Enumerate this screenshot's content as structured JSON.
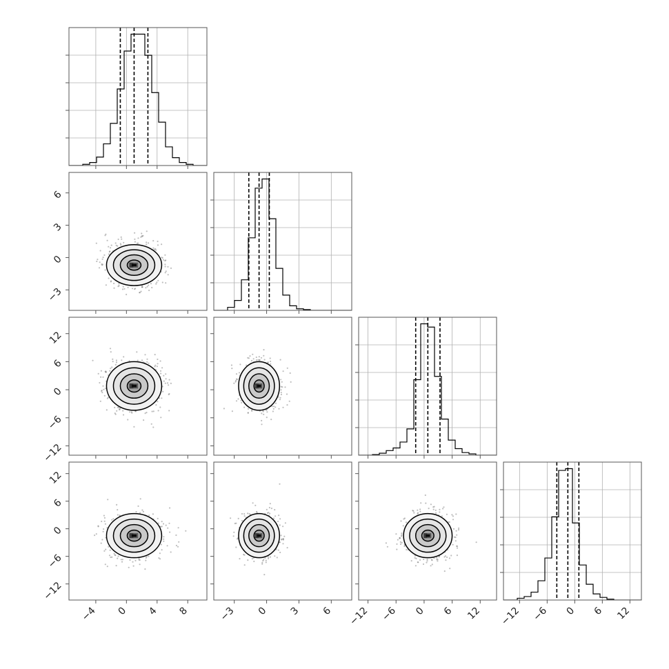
{
  "figure": {
    "type": "corner-plot",
    "colors": {
      "axes": "#555555",
      "grid": "#b0b0b0",
      "ink": "#000000",
      "scatter": "#6e6e6e"
    }
  },
  "parameters": [
    {
      "id": "p0",
      "mean": 1.0,
      "sigma": 1.8,
      "q16": -0.8,
      "q50": 1.0,
      "q84": 2.8,
      "range": [
        -7.5,
        10.5
      ],
      "ticks": [
        -4,
        0,
        4,
        8
      ],
      "tick_labels": [
        "−4",
        "0",
        "4",
        "8"
      ]
    },
    {
      "id": "p1",
      "mean": -0.7,
      "sigma": 0.95,
      "q16": -1.65,
      "q50": -0.7,
      "q84": 0.25,
      "range": [
        -4.9,
        7.9
      ],
      "ticks": [
        -3,
        0,
        3,
        6
      ],
      "tick_labels": [
        "−3",
        "0",
        "3",
        "6"
      ]
    },
    {
      "id": "p2",
      "mean": 0.8,
      "sigma": 2.6,
      "q16": -1.8,
      "q50": 0.8,
      "q84": 3.4,
      "range": [
        -14,
        15.5
      ],
      "ticks": [
        -12,
        -6,
        0,
        6,
        12
      ],
      "tick_labels": [
        "−12",
        "−6",
        "0",
        "6",
        "12"
      ]
    },
    {
      "id": "p3",
      "mean": -1.5,
      "sigma": 2.4,
      "q16": -3.9,
      "q50": -1.5,
      "q84": 0.9,
      "range": [
        -15.5,
        14.5
      ],
      "ticks": [
        -12,
        -6,
        0,
        6,
        12
      ],
      "tick_labels": [
        "−12",
        "−6",
        "0",
        "6",
        "12"
      ]
    }
  ],
  "chart_data": [
    {
      "type": "histogram",
      "panel": "hist-p0",
      "param": 0,
      "bins": [
        -7.5,
        -6.6,
        -5.7,
        -4.8,
        -3.9,
        -3.0,
        -2.1,
        -1.2,
        -0.3,
        0.6,
        1.5,
        2.4,
        3.3,
        4.2,
        5.1,
        6.0,
        6.9,
        7.8,
        8.7,
        9.6,
        10.5
      ],
      "counts": [
        0,
        0,
        2,
        5,
        14,
        36,
        70,
        127,
        190,
        218,
        218,
        183,
        121,
        72,
        31,
        13,
        5,
        2,
        0,
        0
      ],
      "quantiles": [
        -0.8,
        1.0,
        2.8
      ]
    },
    {
      "type": "histogram",
      "panel": "hist-p1",
      "param": 1,
      "bins": [
        -4.9,
        -4.26,
        -3.62,
        -2.98,
        -2.34,
        -1.7,
        -1.06,
        -0.42,
        0.22,
        0.86,
        1.5,
        2.14,
        2.78,
        3.42,
        4.06,
        4.7,
        5.34,
        5.98,
        6.62,
        7.26,
        7.9
      ],
      "counts": [
        0,
        0,
        4,
        13,
        40,
        95,
        160,
        172,
        120,
        55,
        20,
        6,
        2,
        1,
        0,
        0,
        0,
        0,
        0,
        0
      ],
      "quantiles": [
        -1.65,
        -0.7,
        0.25
      ]
    },
    {
      "type": "histogram",
      "panel": "hist-p2",
      "param": 2,
      "bins": [
        -14.0,
        -12.525,
        -11.05,
        -9.575,
        -8.1,
        -6.625,
        -5.15,
        -3.675,
        -2.2,
        -0.725,
        0.75,
        2.225,
        3.7,
        5.175,
        6.65,
        8.125,
        9.6,
        11.075,
        12.55,
        14.025,
        15.5
      ],
      "counts": [
        0,
        0,
        1,
        3,
        7,
        11,
        20,
        40,
        115,
        200,
        195,
        120,
        55,
        23,
        10,
        4,
        2,
        0,
        0,
        0
      ],
      "quantiles": [
        -1.8,
        0.8,
        3.4
      ]
    },
    {
      "type": "histogram",
      "panel": "hist-p3",
      "param": 3,
      "bins": [
        -15.5,
        -14.0,
        -12.5,
        -11.0,
        -9.5,
        -8.0,
        -6.5,
        -5.0,
        -3.5,
        -2.0,
        -0.5,
        1.0,
        2.5,
        4.0,
        5.5,
        7.0,
        8.5,
        10.0,
        11.5,
        13.0,
        14.5
      ],
      "counts": [
        0,
        0,
        2,
        4,
        9,
        22,
        48,
        95,
        148,
        150,
        88,
        40,
        18,
        7,
        3,
        1,
        0,
        0,
        0,
        0
      ],
      "quantiles": [
        -3.9,
        -1.5,
        0.9
      ]
    },
    {
      "type": "scatter-contour",
      "panel": "joint-p1-p0",
      "x_param": 0,
      "y_param": 1,
      "levels": [
        0.5,
        1.0,
        1.5,
        2.0
      ]
    },
    {
      "type": "scatter-contour",
      "panel": "joint-p2-p0",
      "x_param": 0,
      "y_param": 2,
      "levels": [
        0.5,
        1.0,
        1.5,
        2.0
      ]
    },
    {
      "type": "scatter-contour",
      "panel": "joint-p2-p1",
      "x_param": 1,
      "y_param": 2,
      "levels": [
        0.5,
        1.0,
        1.5,
        2.0
      ]
    },
    {
      "type": "scatter-contour",
      "panel": "joint-p3-p0",
      "x_param": 0,
      "y_param": 3,
      "levels": [
        0.5,
        1.0,
        1.5,
        2.0
      ]
    },
    {
      "type": "scatter-contour",
      "panel": "joint-p3-p1",
      "x_param": 1,
      "y_param": 3,
      "levels": [
        0.5,
        1.0,
        1.5,
        2.0
      ]
    },
    {
      "type": "scatter-contour",
      "panel": "joint-p3-p2",
      "x_param": 2,
      "y_param": 3,
      "levels": [
        0.5,
        1.0,
        1.5,
        2.0
      ]
    }
  ]
}
